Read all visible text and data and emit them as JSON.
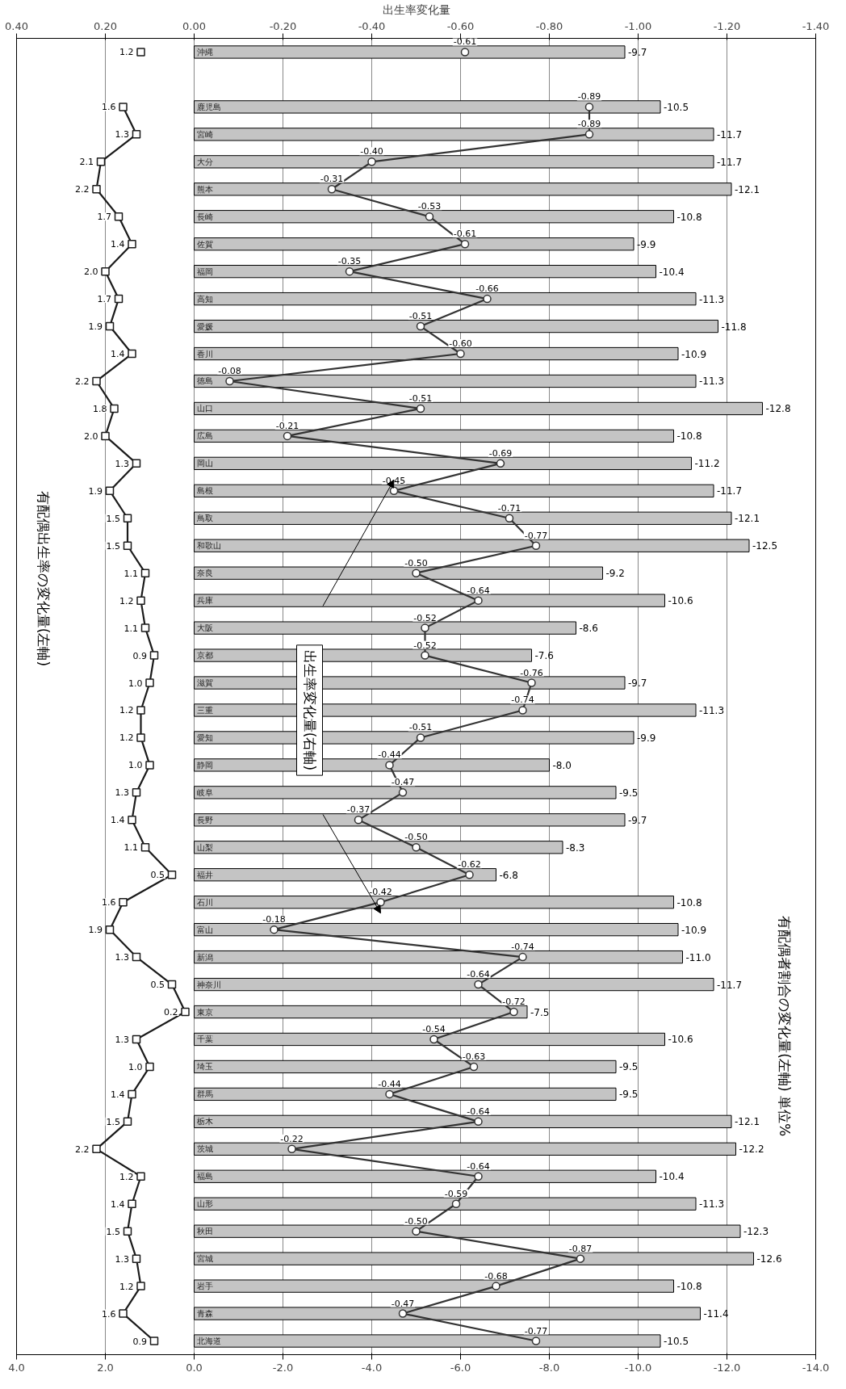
{
  "chart_data": {
    "type": "bar",
    "orientation": "horizontal",
    "categories": [
      "沖縄",
      null,
      "鹿児島",
      "宮崎",
      "大分",
      "熊本",
      "長崎",
      "佐賀",
      "福岡",
      "高知",
      "愛媛",
      "香川",
      "徳島",
      "山口",
      "広島",
      "岡山",
      "島根",
      "鳥取",
      "和歌山",
      "奈良",
      "兵庫",
      "大阪",
      "京都",
      "滋賀",
      "三重",
      "愛知",
      "静岡",
      "岐阜",
      "長野",
      "山梨",
      "福井",
      "石川",
      "富山",
      "新潟",
      "神奈川",
      "東京",
      "千葉",
      "埼玉",
      "群馬",
      "栃木",
      "茨城",
      "福島",
      "山形",
      "秋田",
      "宮城",
      "岩手",
      "青森",
      "北海道"
    ],
    "series": [
      {
        "color": "#c4c4c4",
        "value_labels": [
          "-9.7",
          null,
          "-10.5",
          "-11.7",
          "-11.7",
          "-12.1",
          "-10.8",
          "-9.9",
          "-10.4",
          "-11.3",
          "-11.8",
          "-10.9",
          "-11.3",
          "-12.8",
          "-10.8",
          "-11.2",
          "-11.7",
          "-12.1",
          "-12.5",
          "-9.2",
          "-10.6",
          "-8.6",
          "-7.6",
          "-9.7",
          "-11.3",
          "-9.9",
          "-8.0",
          "-9.5",
          "-9.7",
          "-8.3",
          "-6.8",
          "-10.8",
          "-10.9",
          "-11.0",
          "-11.7",
          "-7.5",
          "-10.6",
          "-9.5",
          "-9.5",
          "-12.1",
          "-12.2",
          "-10.4",
          "-11.3",
          "-12.3",
          "-12.6",
          "-10.8",
          "-11.4",
          "-10.5"
        ],
        "values": [
          -9.7,
          null,
          -10.5,
          -11.7,
          -11.7,
          -12.1,
          -10.8,
          -9.9,
          -10.4,
          -11.3,
          -11.8,
          -10.9,
          -11.3,
          -12.8,
          -10.8,
          -11.2,
          -11.7,
          -12.1,
          -12.5,
          -9.2,
          -10.6,
          -8.6,
          -7.6,
          -9.7,
          -11.3,
          -9.9,
          -8.0,
          -9.5,
          -9.7,
          -8.3,
          -6.8,
          -10.8,
          -10.9,
          -11.0,
          -11.7,
          -7.5,
          -10.6,
          -9.5,
          -9.5,
          -12.1,
          -12.2,
          -10.4,
          -11.3,
          -12.3,
          -12.6,
          -10.8,
          -11.4,
          -10.5
        ]
      },
      {
        "type": "line",
        "marker": "square",
        "color": "#1a1a1a",
        "value_labels": [
          "1.2",
          null,
          "1.6",
          "1.3",
          "2.1",
          "2.2",
          "1.7",
          "1.4",
          "2.0",
          "1.7",
          "1.9",
          "1.4",
          "2.2",
          "1.8",
          "2.0",
          "1.3",
          "1.9",
          "1.5",
          "1.5",
          "1.1",
          "1.2",
          "1.1",
          "0.9",
          "1.0",
          "1.2",
          "1.2",
          "1.0",
          "1.3",
          "1.4",
          "1.1",
          "0.5",
          "1.6",
          "1.9",
          "1.3",
          "0.5",
          "0.2",
          "1.3",
          "1.0",
          "1.4",
          "1.5",
          "2.2",
          "1.2",
          "1.4",
          "1.5",
          "1.3",
          "1.2",
          "1.6",
          "0.9"
        ],
        "values": [
          1.2,
          null,
          1.6,
          1.3,
          2.1,
          2.2,
          1.7,
          1.4,
          2.0,
          1.7,
          1.9,
          1.4,
          2.2,
          1.8,
          2.0,
          1.3,
          1.9,
          1.5,
          1.5,
          1.1,
          1.2,
          1.1,
          0.9,
          1.0,
          1.2,
          1.2,
          1.0,
          1.3,
          1.4,
          1.1,
          0.5,
          1.6,
          1.9,
          1.3,
          0.5,
          0.2,
          1.3,
          1.0,
          1.4,
          1.5,
          2.2,
          1.2,
          1.4,
          1.5,
          1.3,
          1.2,
          1.6,
          0.9
        ]
      },
      {
        "type": "line",
        "marker": "circle",
        "axis": "x2",
        "color": "#333333",
        "value_labels": [
          "-0.61",
          null,
          "-0.89",
          "-0.89",
          "-0.40",
          "-0.31",
          "-0.53",
          "-0.61",
          "-0.35",
          "-0.66",
          "-0.51",
          "-0.60",
          "-0.08",
          "-0.51",
          "-0.21",
          "-0.69",
          "-0.45",
          "-0.71",
          "-0.77",
          "-0.50",
          "-0.64",
          "-0.52",
          "-0.52",
          "-0.76",
          "-0.74",
          "-0.51",
          "-0.44",
          "-0.47",
          "-0.37",
          "-0.50",
          "-0.62",
          "-0.42",
          "-0.18",
          "-0.74",
          "-0.64",
          "-0.72",
          "-0.54",
          "-0.63",
          "-0.44",
          "-0.64",
          "-0.22",
          "-0.64",
          "-0.59",
          "-0.50",
          "-0.87",
          "-0.68",
          "-0.47",
          "-0.77"
        ],
        "values": [
          -0.61,
          null,
          -0.89,
          -0.89,
          -0.4,
          -0.31,
          -0.53,
          -0.61,
          -0.35,
          -0.66,
          -0.51,
          -0.6,
          -0.08,
          -0.51,
          -0.21,
          -0.69,
          -0.45,
          -0.71,
          -0.77,
          -0.5,
          -0.64,
          -0.52,
          -0.52,
          -0.76,
          -0.74,
          -0.51,
          -0.44,
          -0.47,
          -0.37,
          -0.5,
          -0.62,
          -0.42,
          -0.18,
          -0.74,
          -0.64,
          -0.72,
          -0.54,
          -0.63,
          -0.44,
          -0.64,
          -0.22,
          -0.64,
          -0.59,
          -0.5,
          -0.87,
          -0.68,
          -0.47,
          -0.77
        ]
      }
    ],
    "xlim": [
      4,
      -14
    ],
    "xticks": [
      {
        "value": 4,
        "label": "4.0"
      },
      {
        "value": 2,
        "label": "2.0"
      },
      {
        "value": 0,
        "label": "0.0"
      },
      {
        "value": -2,
        "label": "-2.0"
      },
      {
        "value": -4,
        "label": "-4.0"
      },
      {
        "value": -6,
        "label": "-6.0"
      },
      {
        "value": -8,
        "label": "-8.0"
      },
      {
        "value": -10,
        "label": "-10.0"
      },
      {
        "value": -12,
        "label": "-12.0"
      },
      {
        "value": -14,
        "label": "-14.0"
      }
    ],
    "x2lim": [
      0.4,
      -1.4
    ],
    "x2ticks": [
      {
        "value": 0.4,
        "label": "0.40"
      },
      {
        "value": 0.2,
        "label": "0.20"
      },
      {
        "value": 0,
        "label": "0.00"
      },
      {
        "value": -0.2,
        "label": "-0.20"
      },
      {
        "value": -0.4,
        "label": "-0.40"
      },
      {
        "value": -0.6,
        "label": "-0.60"
      },
      {
        "value": -0.8,
        "label": "-0.80"
      },
      {
        "value": -1.0,
        "label": "-1.00"
      },
      {
        "value": -1.2,
        "label": "-1.20"
      },
      {
        "value": -1.4,
        "label": "-1.40"
      }
    ],
    "x2label": "出生率変化量",
    "grid": "x",
    "annotations": [
      "有配偶出生率の変化量(左軸)",
      "出生率変化量(右軸)",
      "有配偶者割合の変化量(左軸) 単位%"
    ]
  }
}
